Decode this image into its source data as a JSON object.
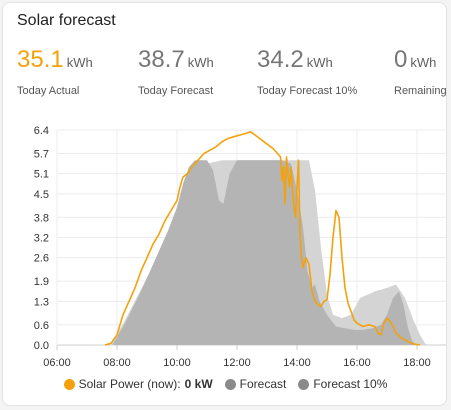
{
  "card": {
    "title": "Solar forecast"
  },
  "stats": [
    {
      "value": "35.1",
      "unit": "kWh",
      "label": "Today Actual",
      "color": "#f4a10c"
    },
    {
      "value": "38.7",
      "unit": "kWh",
      "label": "Today Forecast",
      "color": "#777777"
    },
    {
      "value": "34.2",
      "unit": "kWh",
      "label": "Today Forecast 10%",
      "color": "#777777"
    },
    {
      "value": "0",
      "unit": "kWh",
      "label": "Remaining",
      "color": "#777777"
    }
  ],
  "legend": [
    {
      "label": "Solar Power (now):",
      "value": "0 kW",
      "color": "#f4a10c"
    },
    {
      "label": "Forecast",
      "value": "",
      "color": "#8a8a8a"
    },
    {
      "label": "Forecast 10%",
      "value": "",
      "color": "#8a8a8a"
    }
  ],
  "chart_data": {
    "type": "area",
    "xlim": [
      6,
      19
    ],
    "ylim": [
      0,
      6.4
    ],
    "x_ticks": [
      6,
      8,
      10,
      12,
      14,
      16,
      18
    ],
    "x_tick_labels": [
      "06:00",
      "08:00",
      "10:00",
      "12:00",
      "14:00",
      "16:00",
      "18:00"
    ],
    "y_ticks": [
      0,
      0.6,
      1.3,
      1.9,
      2.6,
      3.2,
      3.8,
      4.5,
      5.1,
      5.7,
      6.4
    ],
    "y_tick_labels": [
      "0.0",
      "0.6",
      "1.3",
      "1.9",
      "2.6",
      "3.2",
      "3.8",
      "4.5",
      "5.1",
      "5.7",
      "6.4"
    ],
    "series": [
      {
        "name": "Forecast 10%",
        "kind": "area",
        "color": "#d4d4d4",
        "points": [
          [
            7.8,
            0
          ],
          [
            8.3,
            0.8
          ],
          [
            9,
            2
          ],
          [
            9.5,
            2.8
          ],
          [
            10,
            3.5
          ],
          [
            10.5,
            4.6
          ],
          [
            11,
            5.4
          ],
          [
            11.5,
            5.5
          ],
          [
            12,
            5.5
          ],
          [
            12.5,
            5.5
          ],
          [
            13,
            5.5
          ],
          [
            13.5,
            5.5
          ],
          [
            14,
            5.5
          ],
          [
            14.4,
            5.5
          ],
          [
            14.6,
            4.6
          ],
          [
            14.8,
            2.9
          ],
          [
            15.0,
            1.5
          ],
          [
            15.2,
            0.9
          ],
          [
            15.5,
            0.8
          ],
          [
            15.8,
            0.9
          ],
          [
            16.1,
            1.4
          ],
          [
            16.6,
            1.6
          ],
          [
            17.0,
            1.7
          ],
          [
            17.3,
            1.8
          ],
          [
            17.6,
            1.4
          ],
          [
            17.9,
            0.7
          ],
          [
            18.1,
            0.3
          ],
          [
            18.3,
            0
          ]
        ]
      },
      {
        "name": "Forecast",
        "kind": "area",
        "color": "#b4b4b4",
        "points": [
          [
            7.85,
            0
          ],
          [
            8.3,
            0.7
          ],
          [
            8.8,
            1.6
          ],
          [
            9.3,
            2.6
          ],
          [
            9.7,
            3.4
          ],
          [
            10.0,
            4.1
          ],
          [
            10.2,
            4.8
          ],
          [
            10.4,
            5.3
          ],
          [
            10.6,
            5.5
          ],
          [
            11.0,
            5.5
          ],
          [
            11.2,
            5.2
          ],
          [
            11.4,
            4.3
          ],
          [
            11.55,
            4.2
          ],
          [
            11.75,
            5.1
          ],
          [
            12.0,
            5.5
          ],
          [
            13.0,
            5.5
          ],
          [
            13.5,
            5.5
          ],
          [
            13.8,
            5.4
          ],
          [
            14.0,
            4.6
          ],
          [
            14.2,
            3.5
          ],
          [
            14.35,
            2.2
          ],
          [
            14.5,
            1.7
          ],
          [
            14.6,
            1.8
          ],
          [
            14.75,
            1.3
          ],
          [
            15.0,
            0.9
          ],
          [
            15.3,
            0.55
          ],
          [
            15.6,
            0.5
          ],
          [
            15.9,
            0.45
          ],
          [
            16.2,
            0.45
          ],
          [
            16.5,
            0.5
          ],
          [
            16.8,
            0.6
          ],
          [
            17.0,
            0.9
          ],
          [
            17.2,
            1.4
          ],
          [
            17.4,
            1.6
          ],
          [
            17.55,
            1.2
          ],
          [
            17.7,
            0.5
          ],
          [
            17.85,
            0.1
          ],
          [
            18.0,
            0
          ]
        ]
      },
      {
        "name": "Solar Power",
        "kind": "line",
        "color": "#f4a10c",
        "points": [
          [
            7.6,
            0
          ],
          [
            7.8,
            0.05
          ],
          [
            8.0,
            0.3
          ],
          [
            8.2,
            0.9
          ],
          [
            8.4,
            1.3
          ],
          [
            8.6,
            1.7
          ],
          [
            8.8,
            2.2
          ],
          [
            9.0,
            2.6
          ],
          [
            9.2,
            3.0
          ],
          [
            9.4,
            3.3
          ],
          [
            9.6,
            3.7
          ],
          [
            9.8,
            4.0
          ],
          [
            10.0,
            4.3
          ],
          [
            10.1,
            4.7
          ],
          [
            10.2,
            5.0
          ],
          [
            10.35,
            5.1
          ],
          [
            10.5,
            5.3
          ],
          [
            10.7,
            5.5
          ],
          [
            10.9,
            5.7
          ],
          [
            11.1,
            5.8
          ],
          [
            11.3,
            5.9
          ],
          [
            11.5,
            6.05
          ],
          [
            11.7,
            6.15
          ],
          [
            11.9,
            6.2
          ],
          [
            12.1,
            6.25
          ],
          [
            12.3,
            6.3
          ],
          [
            12.45,
            6.35
          ],
          [
            12.6,
            6.25
          ],
          [
            12.75,
            6.15
          ],
          [
            12.9,
            6.05
          ],
          [
            13.05,
            5.95
          ],
          [
            13.2,
            5.85
          ],
          [
            13.35,
            5.7
          ],
          [
            13.45,
            5.6
          ],
          [
            13.5,
            4.9
          ],
          [
            13.55,
            5.3
          ],
          [
            13.6,
            4.2
          ],
          [
            13.65,
            5.6
          ],
          [
            13.7,
            5.1
          ],
          [
            13.75,
            4.7
          ],
          [
            13.8,
            5.3
          ],
          [
            13.85,
            4.6
          ],
          [
            13.9,
            4.1
          ],
          [
            13.95,
            3.8
          ],
          [
            14.0,
            4.7
          ],
          [
            14.05,
            5.5
          ],
          [
            14.1,
            3.4
          ],
          [
            14.15,
            2.6
          ],
          [
            14.2,
            2.3
          ],
          [
            14.3,
            2.6
          ],
          [
            14.4,
            2.4
          ],
          [
            14.5,
            1.6
          ],
          [
            14.6,
            1.3
          ],
          [
            14.7,
            1.2
          ],
          [
            14.8,
            1.15
          ],
          [
            14.9,
            1.3
          ],
          [
            15.0,
            1.35
          ],
          [
            15.1,
            2.1
          ],
          [
            15.2,
            3.2
          ],
          [
            15.3,
            4.0
          ],
          [
            15.4,
            3.8
          ],
          [
            15.5,
            2.6
          ],
          [
            15.6,
            1.7
          ],
          [
            15.7,
            1.25
          ],
          [
            15.8,
            1.0
          ],
          [
            15.9,
            0.75
          ],
          [
            16.0,
            0.65
          ],
          [
            16.2,
            0.55
          ],
          [
            16.4,
            0.6
          ],
          [
            16.6,
            0.55
          ],
          [
            16.7,
            0.35
          ],
          [
            16.8,
            0.3
          ],
          [
            16.9,
            0.65
          ],
          [
            17.0,
            0.8
          ],
          [
            17.1,
            0.7
          ],
          [
            17.2,
            0.55
          ],
          [
            17.3,
            0.35
          ],
          [
            17.5,
            0.2
          ],
          [
            17.7,
            0.1
          ],
          [
            17.9,
            0.03
          ],
          [
            18.1,
            0
          ]
        ]
      }
    ]
  }
}
